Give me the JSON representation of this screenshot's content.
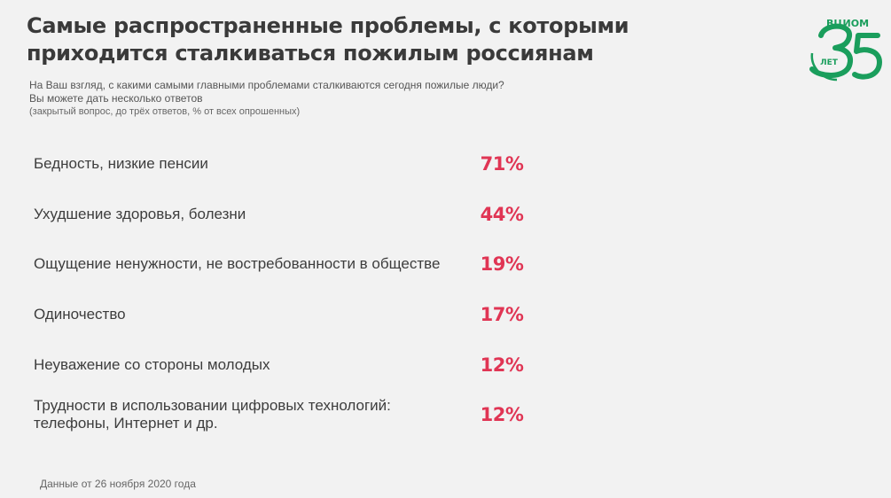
{
  "header": {
    "title_lines": [
      "Самые распространенные проблемы, с которыми",
      "приходится сталкиваться пожилым россиянам"
    ],
    "question_lines": [
      "На Ваш взгляд, с какими самыми главными проблемами сталкиваются сегодня пожилые люди?",
      "Вы можете дать несколько ответов"
    ],
    "note": "(закрытый вопрос, до трёх ответов, % от всех опрошенных)"
  },
  "logo": {
    "brand": "ВЦИОМ",
    "number": "35",
    "years": "ЛЕТ",
    "color": "#1a9e5c"
  },
  "chart_data": {
    "type": "table",
    "unit": "%",
    "value_color": "#e03554",
    "rows": [
      {
        "label": "Бедность, низкие пенсии",
        "value": 71
      },
      {
        "label": "Ухудшение здоровья, болезни",
        "value": 44
      },
      {
        "label": "Ощущение ненужности, не востребованности в обществе",
        "value": 19
      },
      {
        "label": "Одиночество",
        "value": 17
      },
      {
        "label": "Неуважение со стороны молодых",
        "value": 12
      },
      {
        "label": "Трудности в использовании цифровых технологий: телефоны, Интернет и др.",
        "value": 12
      }
    ]
  },
  "footer": {
    "source": "Данные от 26 ноября 2020 года"
  }
}
